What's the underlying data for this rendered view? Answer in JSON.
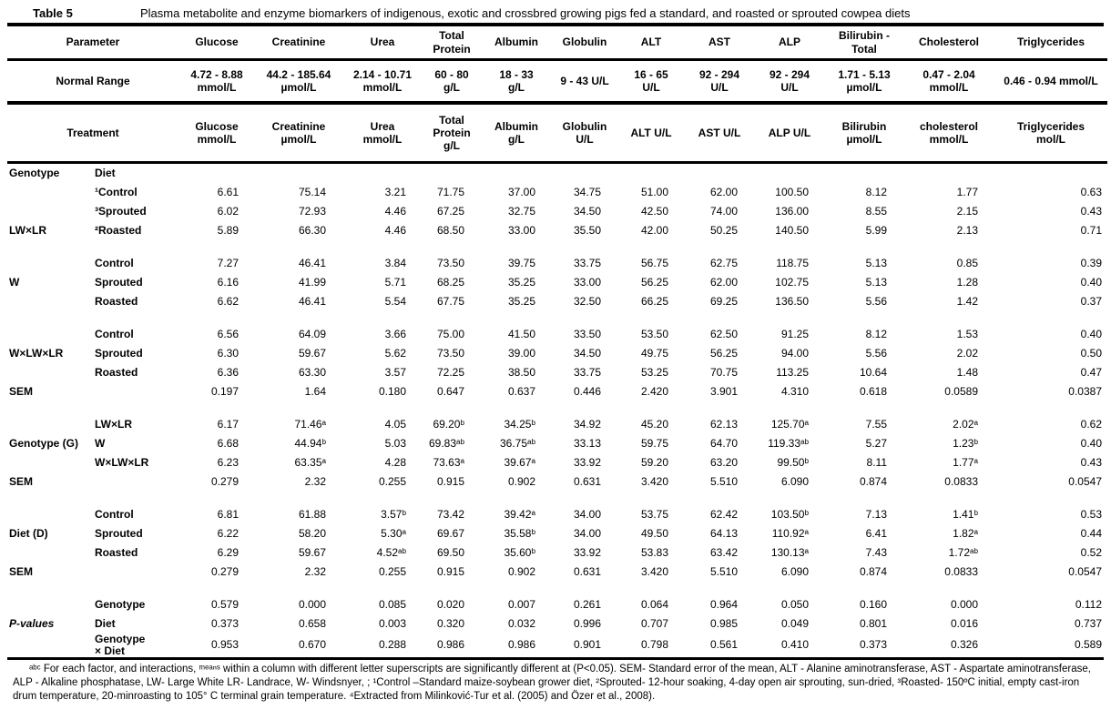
{
  "title": {
    "label": "Table 5",
    "text": "Plasma metabolite and enzyme biomarkers of indigenous, exotic and crossbred growing pigs fed a standard, and roasted or sprouted cowpea diets"
  },
  "table": {
    "header_rows": [
      {
        "label": "Parameter",
        "cells": [
          "Glucose",
          "Creatinine",
          "Urea",
          "Total\nProtein",
          "Albumin",
          "Globulin",
          "ALT",
          "AST",
          "ALP",
          "Bilirubin -\nTotal",
          "Cholesterol",
          "Triglycerides"
        ]
      },
      {
        "label": "Normal Range",
        "cells": [
          "4.72 - 8.88\nmmol/L",
          "44.2 - 185.64\nµmol/L",
          "2.14 - 10.71\nmmol/L",
          "60 - 80\ng/L",
          "18 - 33\ng/L",
          "9 - 43 U/L",
          "16 - 65\nU/L",
          "92 - 294\nU/L",
          "92 - 294\nU/L",
          "1.71 - 5.13\nµmol/L",
          "0.47 - 2.04\nmmol/L",
          "0.46 - 0.94 mmol/L"
        ]
      },
      {
        "label": "Treatment",
        "cells": [
          "Glucose\nmmol/L",
          "Creatinine\nµmol/L",
          "Urea\nmmol/L",
          "Total\nProtein\ng/L",
          "Albumin\ng/L",
          "Globulin\nU/L",
          "ALT U/L",
          "AST U/L",
          "ALP U/L",
          "Bilirubin\nµmol/L",
          "cholesterol\nmmol/L",
          "Triglycerides\nmol/L"
        ]
      }
    ],
    "body_rows": [
      {
        "g": "Genotype",
        "l": "Diet",
        "c": []
      },
      {
        "g": "",
        "l": "¹Control",
        "c": [
          "6.61",
          "75.14",
          "3.21",
          "71.75",
          "37.00",
          "34.75",
          "51.00",
          "62.00",
          "100.50",
          "8.12",
          "1.77",
          "0.63"
        ]
      },
      {
        "g": "",
        "l": "³Sprouted",
        "c": [
          "6.02",
          "72.93",
          "4.46",
          "67.25",
          "32.75",
          "34.50",
          "42.50",
          "74.00",
          "136.00",
          "8.55",
          "2.15",
          "0.43"
        ]
      },
      {
        "g": "LW×LR",
        "l": "²Roasted",
        "c": [
          "5.89",
          "66.30",
          "4.46",
          "68.50",
          "33.00",
          "35.50",
          "42.00",
          "50.25",
          "140.50",
          "5.99",
          "2.13",
          "0.71"
        ]
      },
      {
        "spacer": true
      },
      {
        "g": "",
        "l": "Control",
        "c": [
          "7.27",
          "46.41",
          "3.84",
          "73.50",
          "39.75",
          "33.75",
          "56.75",
          "62.75",
          "118.75",
          "5.13",
          "0.85",
          "0.39"
        ]
      },
      {
        "g": "W",
        "l": "Sprouted",
        "c": [
          "6.16",
          "41.99",
          "5.71",
          "68.25",
          "35.25",
          "33.00",
          "56.25",
          "62.00",
          "102.75",
          "5.13",
          "1.28",
          "0.40"
        ]
      },
      {
        "g": "",
        "l": "Roasted",
        "c": [
          "6.62",
          "46.41",
          "5.54",
          "67.75",
          "35.25",
          "32.50",
          "66.25",
          "69.25",
          "136.50",
          "5.56",
          "1.42",
          "0.37"
        ]
      },
      {
        "spacer": true
      },
      {
        "g": "",
        "l": "Control",
        "c": [
          "6.56",
          "64.09",
          "3.66",
          "75.00",
          "41.50",
          "33.50",
          "53.50",
          "62.50",
          "91.25",
          "8.12",
          "1.53",
          "0.40"
        ]
      },
      {
        "g": "W×LW×LR",
        "l": "Sprouted",
        "c": [
          "6.30",
          "59.67",
          "5.62",
          "73.50",
          "39.00",
          "34.50",
          "49.75",
          "56.25",
          "94.00",
          "5.56",
          "2.02",
          "0.50"
        ]
      },
      {
        "g": "",
        "l": "Roasted",
        "c": [
          "6.36",
          "63.30",
          "3.57",
          "72.25",
          "38.50",
          "33.75",
          "53.25",
          "70.75",
          "113.25",
          "10.64",
          "1.48",
          "0.47"
        ]
      },
      {
        "g": "SEM",
        "l": "",
        "c": [
          "0.197",
          "1.64",
          "0.180",
          "0.647",
          "0.637",
          "0.446",
          "2.420",
          "3.901",
          "4.310",
          "0.618",
          "0.0589",
          "0.0387"
        ]
      },
      {
        "spacer": true
      },
      {
        "g": "",
        "l": "LW×LR",
        "c": [
          "6.17",
          "71.46ᵃ",
          "4.05",
          "69.20ᵇ",
          "34.25ᵇ",
          "34.92",
          "45.20",
          "62.13",
          "125.70ᵃ",
          "7.55",
          "2.02ᵃ",
          "0.62"
        ]
      },
      {
        "g": "Genotype (G)",
        "l": "W",
        "c": [
          "6.68",
          "44.94ᵇ",
          "5.03",
          "69.83ᵃᵇ",
          "36.75ᵃᵇ",
          "33.13",
          "59.75",
          "64.70",
          "119.33ᵃᵇ",
          "5.27",
          "1.23ᵇ",
          "0.40"
        ]
      },
      {
        "g": "",
        "l": "W×LW×LR",
        "c": [
          "6.23",
          "63.35ᵃ",
          "4.28",
          "73.63ᵃ",
          "39.67ᵃ",
          "33.92",
          "59.20",
          "63.20",
          "99.50ᵇ",
          "8.11",
          "1.77ᵃ",
          "0.43"
        ]
      },
      {
        "g": "SEM",
        "l": "",
        "c": [
          "0.279",
          "2.32",
          "0.255",
          "0.915",
          "0.902",
          "0.631",
          "3.420",
          "5.510",
          "6.090",
          "0.874",
          "0.0833",
          "0.0547"
        ]
      },
      {
        "spacer": true
      },
      {
        "g": "",
        "l": "Control",
        "c": [
          "6.81",
          "61.88",
          "3.57ᵇ",
          "73.42",
          "39.42ᵃ",
          "34.00",
          "53.75",
          "62.42",
          "103.50ᵇ",
          "7.13",
          "1.41ᵇ",
          "0.53"
        ]
      },
      {
        "g": "Diet (D)",
        "l": "Sprouted",
        "c": [
          "6.22",
          "58.20",
          "5.30ᵃ",
          "69.67",
          "35.58ᵇ",
          "34.00",
          "49.50",
          "64.13",
          "110.92ᵃ",
          "6.41",
          "1.82ᵃ",
          "0.44"
        ]
      },
      {
        "g": "",
        "l": "Roasted",
        "c": [
          "6.29",
          "59.67",
          "4.52ᵃᵇ",
          "69.50",
          "35.60ᵇ",
          "33.92",
          "53.83",
          "63.42",
          "130.13ᵃ",
          "7.43",
          "1.72ᵃᵇ",
          "0.52"
        ]
      },
      {
        "g": "SEM",
        "l": "",
        "c": [
          "0.279",
          "2.32",
          "0.255",
          "0.915",
          "0.902",
          "0.631",
          "3.420",
          "5.510",
          "6.090",
          "0.874",
          "0.0833",
          "0.0547"
        ]
      },
      {
        "spacer": true
      },
      {
        "g": "",
        "l": "Genotype",
        "c": [
          "0.579",
          "0.000",
          "0.085",
          "0.020",
          "0.007",
          "0.261",
          "0.064",
          "0.964",
          "0.050",
          "0.160",
          "0.000",
          "0.112"
        ]
      },
      {
        "g": "P-values",
        "gi": true,
        "l": "Diet",
        "c": [
          "0.373",
          "0.658",
          "0.003",
          "0.320",
          "0.032",
          "0.996",
          "0.707",
          "0.985",
          "0.049",
          "0.801",
          "0.016",
          "0.737"
        ]
      },
      {
        "g": "",
        "l": "Genotype\n× Diet",
        "c": [
          "0.953",
          "0.670",
          "0.288",
          "0.986",
          "0.986",
          "0.901",
          "0.798",
          "0.561",
          "0.410",
          "0.373",
          "0.326",
          "0.589"
        ]
      }
    ],
    "footnote": "ᵃᵇᶜ For each factor, and interactions, ᵐᵉᵃⁿˢ within a column with different letter superscripts are significantly different at (P<0.05). SEM- Standard error of the mean, ALT - Alanine aminotransferase, AST - Aspartate aminotransferase, ALP - Alkaline phosphatase, LW- Large White LR- Landrace, W- Windsnyer, ; ¹Control –Standard maize-soybean grower diet, ²Sprouted- 12-hour soaking, 4-day open air sprouting, sun-dried, ³Roasted- 150ºC initial, empty cast-iron drum temperature, 20-minroasting to 105° C terminal grain temperature. ⁴Extracted from Milinković-Tur et al. (2005) and Özer et al., 2008)."
  },
  "colors": {
    "text": "#000000",
    "background": "#ffffff",
    "rule": "#000000"
  }
}
